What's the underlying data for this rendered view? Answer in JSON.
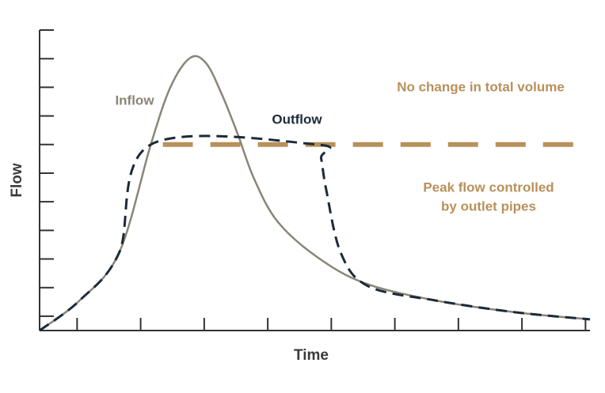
{
  "chart_data": {
    "type": "line",
    "x_label": "Time",
    "y_label": "Flow",
    "xlim": [
      0.41,
      9.07
    ],
    "ylim": [
      0.5,
      11
    ],
    "xticks": [
      1,
      2,
      3,
      4,
      5,
      6,
      7,
      8,
      9
    ],
    "yticks": [
      1,
      2,
      3,
      4,
      5,
      6,
      7,
      8,
      9,
      10,
      11
    ],
    "series": [
      {
        "color": "#b8905a",
        "dash": "long",
        "x": [
          2.35,
          9.07
        ],
        "values": [
          7.0,
          7.0
        ]
      },
      {
        "name": "Inflow",
        "color": "#8a8577",
        "x": [
          0.41,
          1.04,
          1.66,
          2.16,
          2.47,
          2.78,
          3.03,
          3.28,
          3.53,
          3.78,
          4.15,
          4.77,
          5.52,
          6.64,
          7.89,
          9.07
        ],
        "values": [
          0.5,
          1.55,
          3.21,
          7.0,
          9.01,
          10.03,
          9.84,
          8.74,
          7.35,
          5.83,
          4.32,
          3.08,
          2.16,
          1.55,
          1.14,
          0.89
        ]
      },
      {
        "name": "Outflow",
        "color": "#1c2a3a",
        "dash": "short",
        "x": [
          0.41,
          1.04,
          1.66,
          2.16,
          4.77,
          4.84,
          4.92,
          5.15,
          5.58,
          6.64,
          7.89,
          9.07
        ],
        "values": [
          0.5,
          1.55,
          3.21,
          7.0,
          7.0,
          6.52,
          5.42,
          3.21,
          2.05,
          1.55,
          1.14,
          0.89
        ]
      }
    ],
    "annotations": [
      {
        "text": [
          "No change in total volume"
        ],
        "color": "#b8905a"
      },
      {
        "text": [
          "Peak flow controlled",
          "by outlet pipes"
        ],
        "color": "#b8905a"
      }
    ]
  }
}
